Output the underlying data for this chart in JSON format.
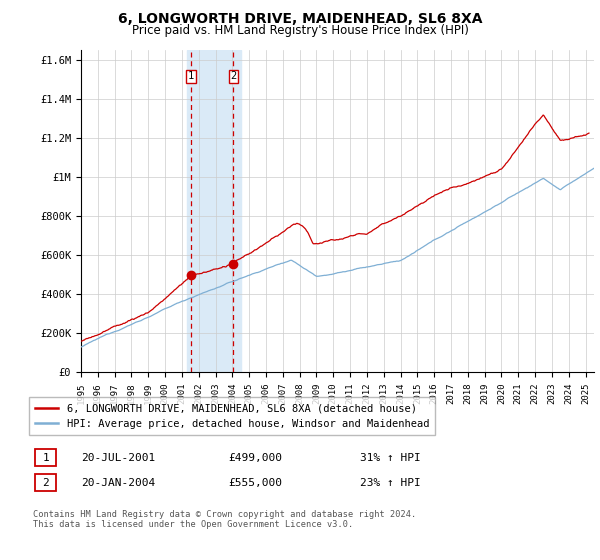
{
  "title": "6, LONGWORTH DRIVE, MAIDENHEAD, SL6 8XA",
  "subtitle": "Price paid vs. HM Land Registry's House Price Index (HPI)",
  "ylabel_ticks": [
    "£0",
    "£200K",
    "£400K",
    "£600K",
    "£800K",
    "£1M",
    "£1.2M",
    "£1.4M",
    "£1.6M"
  ],
  "ylabel_values": [
    0,
    200000,
    400000,
    600000,
    800000,
    1000000,
    1200000,
    1400000,
    1600000
  ],
  "ylim": [
    0,
    1650000
  ],
  "xlim_start": 1995.0,
  "xlim_end": 2025.5,
  "sale1_date": 2001.55,
  "sale1_price": 499000,
  "sale2_date": 2004.05,
  "sale2_price": 555000,
  "highlight_start": 2001.3,
  "highlight_end": 2004.5,
  "highlight_color": "#daeaf7",
  "dashed_line_color": "#cc0000",
  "property_line_color": "#cc0000",
  "hpi_line_color": "#7fafd4",
  "legend_label_property": "6, LONGWORTH DRIVE, MAIDENHEAD, SL6 8XA (detached house)",
  "legend_label_hpi": "HPI: Average price, detached house, Windsor and Maidenhead",
  "table_rows": [
    {
      "num": "1",
      "date": "20-JUL-2001",
      "price": "£499,000",
      "hpi": "31% ↑ HPI"
    },
    {
      "num": "2",
      "date": "20-JAN-2004",
      "price": "£555,000",
      "hpi": "23% ↑ HPI"
    }
  ],
  "footer": "Contains HM Land Registry data © Crown copyright and database right 2024.\nThis data is licensed under the Open Government Licence v3.0.",
  "background_color": "#ffffff",
  "grid_color": "#cccccc"
}
